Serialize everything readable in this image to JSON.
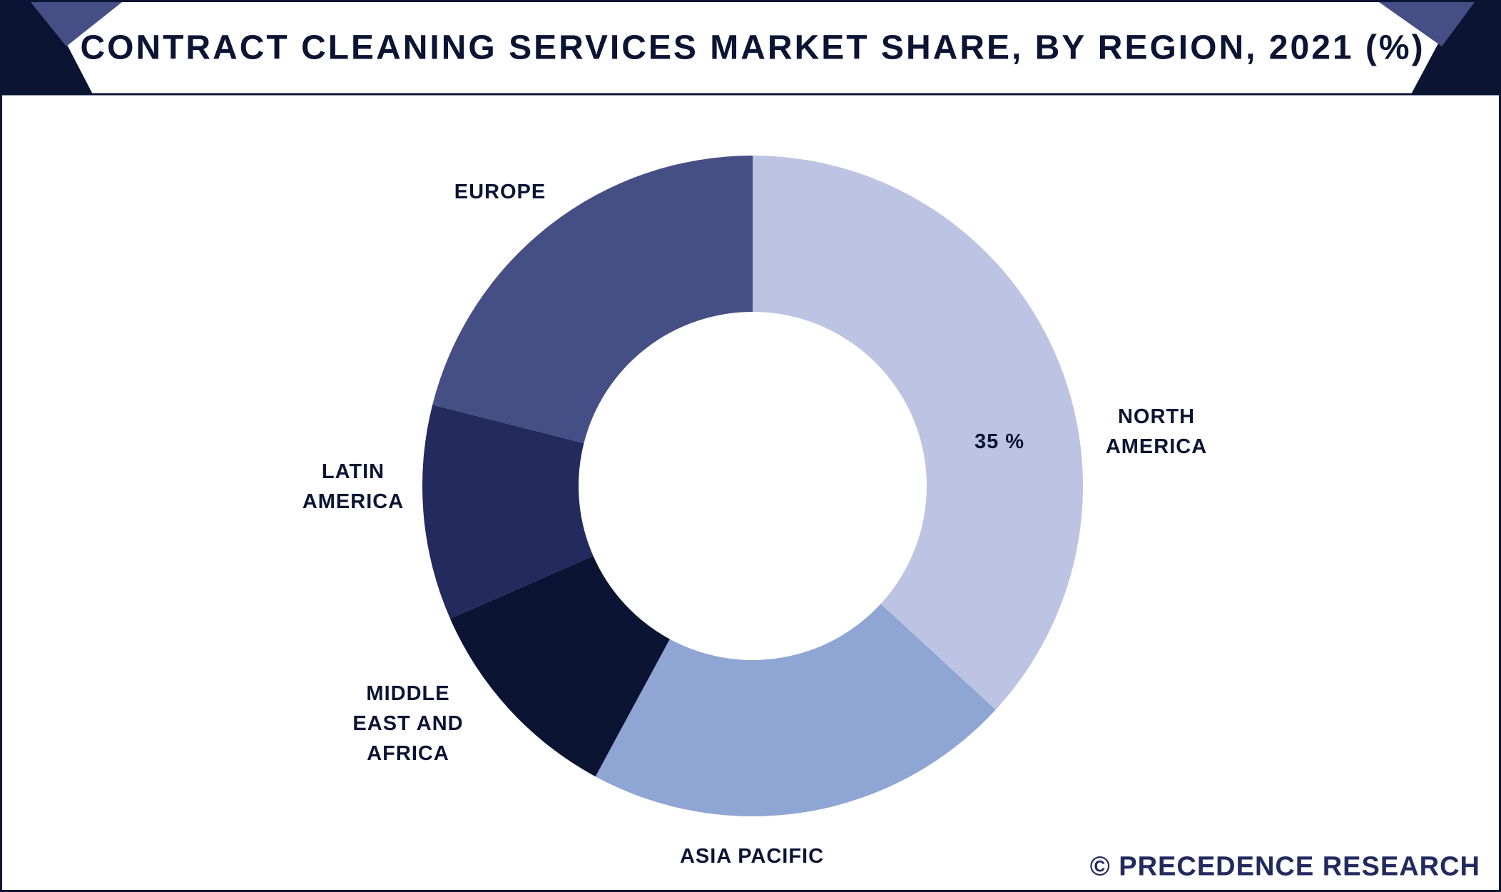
{
  "chart_data": {
    "type": "pie",
    "title": "CONTRACT CLEANING SERVICES MARKET SHARE, BY REGION, 2021 (%)",
    "categories": [
      "NORTH AMERICA",
      "ASIA PACIFIC",
      "MIDDLE EAST AND AFRICA",
      "LATIN AMERICA",
      "EUROPE"
    ],
    "values": [
      35,
      20,
      10,
      10,
      20
    ],
    "value_labels": [
      "35 %",
      null,
      null,
      null,
      null
    ],
    "colors": [
      "#bcc3e3",
      "#8fa5d4",
      "#0b1433",
      "#222a5e",
      "#464f85"
    ],
    "donut": true,
    "source": "© PRECEDENCE RESEARCH"
  }
}
